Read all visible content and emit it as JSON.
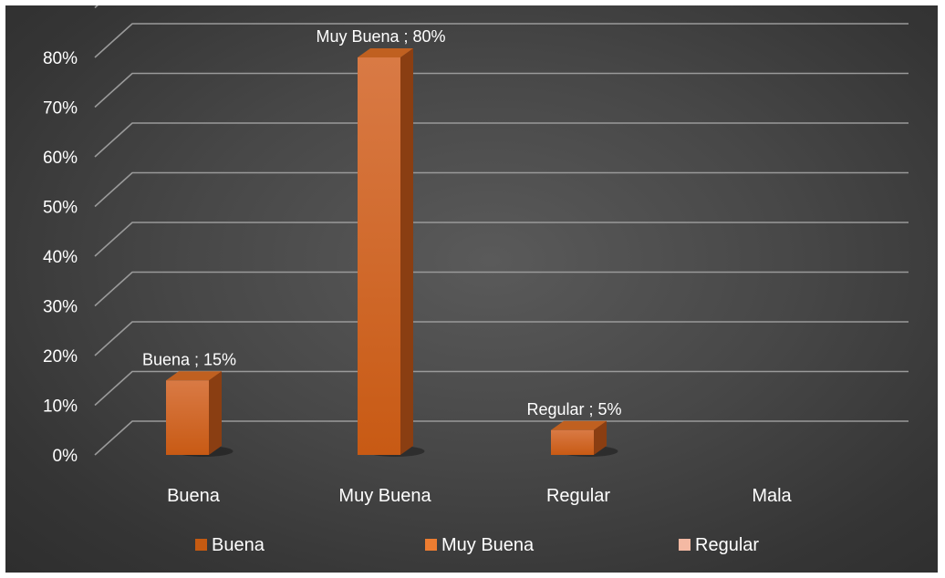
{
  "chart_data": {
    "type": "bar",
    "style": "3d-column",
    "categories": [
      "Buena",
      "Muy Buena",
      "Regular",
      "Mala"
    ],
    "values": [
      15,
      80,
      5,
      null
    ],
    "data_labels": [
      "Buena ; 15%",
      "Muy Buena ; 80%",
      "Regular ; 5%",
      ""
    ],
    "y_tick_labels": [
      "0%",
      "10%",
      "20%",
      "30%",
      "40%",
      "50%",
      "60%",
      "70%",
      "80%"
    ],
    "ylim": [
      0,
      80
    ],
    "y_unit": "%",
    "grid": true,
    "legend_position": "bottom",
    "legend": [
      {
        "label": "Buena",
        "color": "#c55a11"
      },
      {
        "label": "Muy Buena",
        "color": "#ed7d31"
      },
      {
        "label": "Regular",
        "color": "#f4b9a3"
      }
    ],
    "colors": {
      "bar_front": "#d06a2a",
      "bar_side": "#8a3e12",
      "bar_top": "#c06020",
      "grid": "#9a9a9a",
      "background": "#474747",
      "text": "#ffffff"
    }
  }
}
